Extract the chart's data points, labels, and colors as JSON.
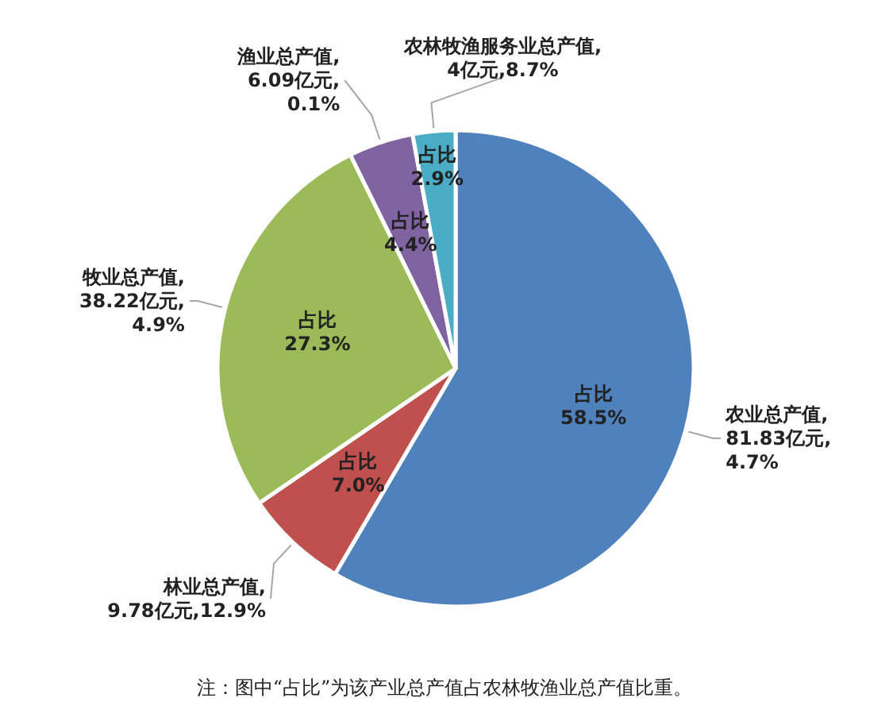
{
  "chart_data": {
    "type": "pie",
    "categories": [
      "农业总产值,\n81.83亿元,\n4.7%",
      "林业总产值,\n9.78亿元,12.9%",
      "牧业总产值,\n38.22亿元,\n4.9%",
      "渔业总产值,\n6.09亿元,\n0.1%",
      "农林牧渔服务业总产值,\n4亿元,8.7%"
    ],
    "values": [
      58.5,
      7.0,
      27.3,
      4.4,
      2.9
    ],
    "value_labels": [
      "占比\n58.5%",
      "占比\n7.0%",
      "占比\n27.3%",
      "占比\n4.4%",
      "占比\n2.9%"
    ],
    "colors": [
      "#4f81bd",
      "#c0504d",
      "#9bbb59",
      "#8064a2",
      "#4bacc6"
    ],
    "annotations": [
      "注：图中“占比”为该产业总产值占农林牧渔业总产值比重。"
    ]
  }
}
